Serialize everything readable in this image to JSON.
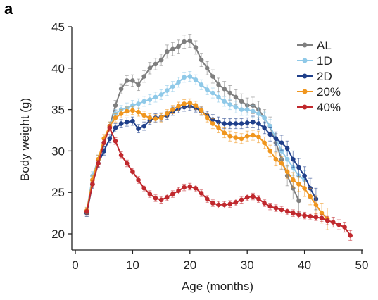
{
  "panel_label": "a",
  "chart_data": {
    "type": "line",
    "title": "",
    "xlabel": "Age (months)",
    "ylabel": "Body weight (g)",
    "xlim": [
      0,
      50
    ],
    "ylim": [
      18.5,
      45
    ],
    "xticks": [
      0,
      10,
      20,
      30,
      40,
      50
    ],
    "yticks": [
      20,
      25,
      30,
      35,
      40,
      45
    ],
    "grid": false,
    "legend_position": "top-right",
    "error_bars": true,
    "series": [
      {
        "name": "AL",
        "color": "#7f7f7f",
        "x": [
          2,
          3,
          4,
          5,
          6,
          7,
          8,
          9,
          10,
          11,
          12,
          13,
          14,
          15,
          16,
          17,
          18,
          19,
          20,
          21,
          22,
          23,
          24,
          25,
          26,
          27,
          28,
          29,
          30,
          31,
          32,
          33,
          34,
          35,
          36,
          37,
          38,
          39
        ],
        "y": [
          22.5,
          26.5,
          29.0,
          31.0,
          33.0,
          35.5,
          37.5,
          38.5,
          38.5,
          38.0,
          39.0,
          40.0,
          40.5,
          41.0,
          42.0,
          42.3,
          42.6,
          43.2,
          43.3,
          42.5,
          41.0,
          40.0,
          39.0,
          38.0,
          37.5,
          37.0,
          36.5,
          36.0,
          35.5,
          35.5,
          35.0,
          34.0,
          33.0,
          31.0,
          29.0,
          27.0,
          25.5,
          24.0
        ],
        "err": [
          0.4,
          0.5,
          0.5,
          0.5,
          0.5,
          0.6,
          0.6,
          0.6,
          0.7,
          0.7,
          0.7,
          0.7,
          0.7,
          0.7,
          0.8,
          0.8,
          0.8,
          0.8,
          0.8,
          0.8,
          0.8,
          0.8,
          0.8,
          0.8,
          0.9,
          0.9,
          0.9,
          0.9,
          0.9,
          1.0,
          1.0,
          1.0,
          1.1,
          1.1,
          1.2,
          1.2,
          1.3,
          1.4
        ]
      },
      {
        "name": "1D",
        "color": "#8fc9e8",
        "x": [
          2,
          3,
          4,
          5,
          6,
          7,
          8,
          9,
          10,
          11,
          12,
          13,
          14,
          15,
          16,
          17,
          18,
          19,
          20,
          21,
          22,
          23,
          24,
          25,
          26,
          27,
          28,
          29,
          30,
          31,
          32,
          33,
          34,
          35,
          36,
          37,
          38,
          39,
          40
        ],
        "y": [
          22.8,
          27.0,
          29.0,
          31.0,
          33.0,
          34.5,
          35.0,
          35.2,
          35.5,
          35.7,
          36.0,
          36.2,
          36.5,
          36.8,
          37.3,
          37.8,
          38.3,
          38.9,
          39.0,
          38.6,
          38.0,
          37.4,
          37.0,
          36.5,
          36.0,
          35.6,
          35.3,
          35.0,
          35.0,
          34.8,
          34.5,
          34.0,
          33.0,
          31.5,
          30.0,
          29.0,
          28.0,
          27.0,
          26.5
        ],
        "err": [
          0.4,
          0.5,
          0.5,
          0.5,
          0.5,
          0.5,
          0.5,
          0.6,
          0.6,
          0.6,
          0.6,
          0.6,
          0.6,
          0.6,
          0.6,
          0.6,
          0.6,
          0.6,
          0.6,
          0.6,
          0.6,
          0.6,
          0.6,
          0.6,
          0.6,
          0.6,
          0.7,
          0.7,
          0.7,
          0.7,
          0.7,
          0.7,
          0.8,
          0.8,
          0.9,
          0.9,
          1.0,
          1.0,
          1.1
        ]
      },
      {
        "name": "2D",
        "color": "#1f3f8a",
        "x": [
          2,
          3,
          4,
          5,
          6,
          7,
          8,
          9,
          10,
          11,
          12,
          13,
          14,
          15,
          16,
          17,
          18,
          19,
          20,
          21,
          22,
          23,
          24,
          25,
          26,
          27,
          28,
          29,
          30,
          31,
          32,
          33,
          34,
          35,
          36,
          37,
          38,
          39,
          40,
          41,
          42
        ],
        "y": [
          22.5,
          26.0,
          28.5,
          30.0,
          31.5,
          32.8,
          33.3,
          33.5,
          33.6,
          32.7,
          33.0,
          33.7,
          34.0,
          34.1,
          34.3,
          34.8,
          35.1,
          35.3,
          35.4,
          35.2,
          34.8,
          34.3,
          33.8,
          33.5,
          33.3,
          33.3,
          33.3,
          33.3,
          33.4,
          33.5,
          33.3,
          32.8,
          32.0,
          31.5,
          31.0,
          30.3,
          29.0,
          28.0,
          27.0,
          25.5,
          24.2
        ],
        "err": [
          0.4,
          0.5,
          0.5,
          0.5,
          0.5,
          0.5,
          0.5,
          0.5,
          0.5,
          0.5,
          0.5,
          0.5,
          0.5,
          0.5,
          0.5,
          0.5,
          0.5,
          0.5,
          0.5,
          0.5,
          0.5,
          0.5,
          0.6,
          0.6,
          0.6,
          0.6,
          0.6,
          0.6,
          0.6,
          0.7,
          0.7,
          0.7,
          0.8,
          0.8,
          0.9,
          0.9,
          1.0,
          1.1,
          1.1,
          1.2,
          1.3
        ]
      },
      {
        "name": "20%",
        "color": "#f0961e",
        "x": [
          2,
          3,
          4,
          5,
          6,
          7,
          8,
          9,
          10,
          11,
          12,
          13,
          14,
          15,
          16,
          17,
          18,
          19,
          20,
          21,
          22,
          23,
          24,
          25,
          26,
          27,
          28,
          29,
          30,
          31,
          32,
          33,
          34,
          35,
          36,
          37,
          38,
          39,
          40,
          41,
          42,
          43,
          44
        ],
        "y": [
          22.8,
          26.5,
          29.0,
          31.5,
          33.0,
          34.0,
          34.5,
          34.8,
          34.9,
          34.7,
          34.3,
          34.0,
          33.9,
          34.0,
          34.5,
          35.0,
          35.4,
          35.7,
          35.8,
          35.5,
          34.9,
          34.0,
          33.3,
          32.8,
          32.2,
          31.8,
          31.6,
          31.5,
          31.8,
          31.9,
          31.7,
          31.0,
          30.0,
          29.0,
          28.5,
          27.5,
          26.5,
          26.0,
          25.5,
          24.5,
          23.5,
          22.5,
          21.8
        ],
        "err": [
          0.4,
          0.5,
          0.5,
          0.5,
          0.5,
          0.5,
          0.5,
          0.5,
          0.5,
          0.5,
          0.5,
          0.5,
          0.5,
          0.5,
          0.5,
          0.5,
          0.5,
          0.5,
          0.5,
          0.5,
          0.5,
          0.5,
          0.6,
          0.6,
          0.6,
          0.6,
          0.6,
          0.6,
          0.6,
          0.6,
          0.7,
          0.7,
          0.7,
          0.8,
          0.8,
          0.8,
          0.9,
          0.9,
          1.0,
          1.0,
          1.1,
          1.2,
          1.3
        ]
      },
      {
        "name": "40%",
        "color": "#c0282d",
        "x": [
          2,
          3,
          4,
          5,
          6,
          7,
          8,
          9,
          10,
          11,
          12,
          13,
          14,
          15,
          16,
          17,
          18,
          19,
          20,
          21,
          22,
          23,
          24,
          25,
          26,
          27,
          28,
          29,
          30,
          31,
          32,
          33,
          34,
          35,
          36,
          37,
          38,
          39,
          40,
          41,
          42,
          43,
          44,
          45,
          46,
          47,
          48
        ],
        "y": [
          22.7,
          26.0,
          28.5,
          31.0,
          32.8,
          31.2,
          29.5,
          28.5,
          27.5,
          26.5,
          25.5,
          24.8,
          24.3,
          24.1,
          24.4,
          24.8,
          25.2,
          25.6,
          25.7,
          25.5,
          24.9,
          24.2,
          23.7,
          23.5,
          23.5,
          23.6,
          23.8,
          24.1,
          24.4,
          24.5,
          24.2,
          23.7,
          23.3,
          23.1,
          22.9,
          22.7,
          22.5,
          22.3,
          22.2,
          22.1,
          22.0,
          21.9,
          21.6,
          21.4,
          21.1,
          20.8,
          19.8
        ],
        "err": [
          0.4,
          0.4,
          0.4,
          0.4,
          0.4,
          0.4,
          0.4,
          0.4,
          0.4,
          0.4,
          0.4,
          0.4,
          0.4,
          0.4,
          0.4,
          0.4,
          0.4,
          0.4,
          0.4,
          0.4,
          0.4,
          0.4,
          0.4,
          0.4,
          0.4,
          0.4,
          0.4,
          0.4,
          0.4,
          0.4,
          0.4,
          0.4,
          0.4,
          0.4,
          0.4,
          0.4,
          0.4,
          0.4,
          0.4,
          0.4,
          0.4,
          0.4,
          0.5,
          0.6,
          0.6,
          0.6,
          0.6
        ]
      }
    ]
  }
}
